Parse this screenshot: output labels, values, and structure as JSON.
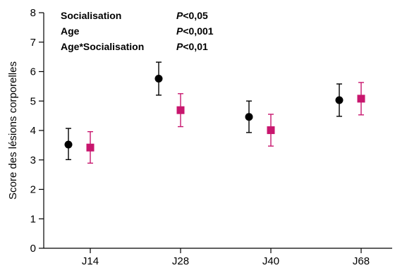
{
  "chart_data": {
    "type": "scatter",
    "ylabel": "Score des lésions corporelles",
    "xlabel": "",
    "ylim": [
      0,
      8
    ],
    "yticks": [
      0,
      1,
      2,
      3,
      4,
      5,
      6,
      7,
      8
    ],
    "categories": [
      "J14",
      "J28",
      "J40",
      "J68"
    ],
    "series": [
      {
        "marker": "circle",
        "color": "#000000",
        "values": [
          3.52,
          5.76,
          4.46,
          5.03
        ],
        "err_low": [
          3.01,
          5.2,
          3.93,
          4.48
        ],
        "err_high": [
          4.07,
          6.32,
          5.0,
          5.58
        ]
      },
      {
        "marker": "square",
        "color": "#c8166e",
        "values": [
          3.42,
          4.69,
          4.01,
          5.08
        ],
        "err_low": [
          2.89,
          4.13,
          3.47,
          4.53
        ],
        "err_high": [
          3.96,
          5.25,
          4.55,
          5.63
        ]
      }
    ],
    "annotations": [
      {
        "label": "Socialisation",
        "p_letter": "P",
        "p_value": "<0,05"
      },
      {
        "label": "Age",
        "p_letter": "P",
        "p_value": "<0,001"
      },
      {
        "label": "Age*Socialisation",
        "p_letter": "P",
        "p_value": "<0,01"
      }
    ]
  }
}
